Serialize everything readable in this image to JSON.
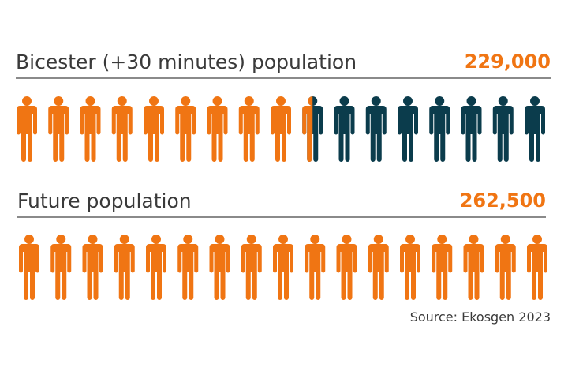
{
  "colors": {
    "orange": "#f07513",
    "navy": "#0b3c4c",
    "rule": "#8a8a8a"
  },
  "chart_data": {
    "type": "pictogram",
    "icon": "person-icon",
    "rows": [
      {
        "title": "Bicester (+30 minutes) population",
        "value_label": "229,000",
        "icons_total": 17,
        "icons_highlighted": 9.5,
        "highlight_color": "#f07513",
        "base_color": "#0b3c4c"
      },
      {
        "title": "Future population",
        "value_label": "262,500",
        "icons_total": 17,
        "icons_highlighted": 17,
        "highlight_color": "#f07513",
        "base_color": "#0b3c4c"
      }
    ]
  },
  "source": "Source: Ekosgen 2023"
}
